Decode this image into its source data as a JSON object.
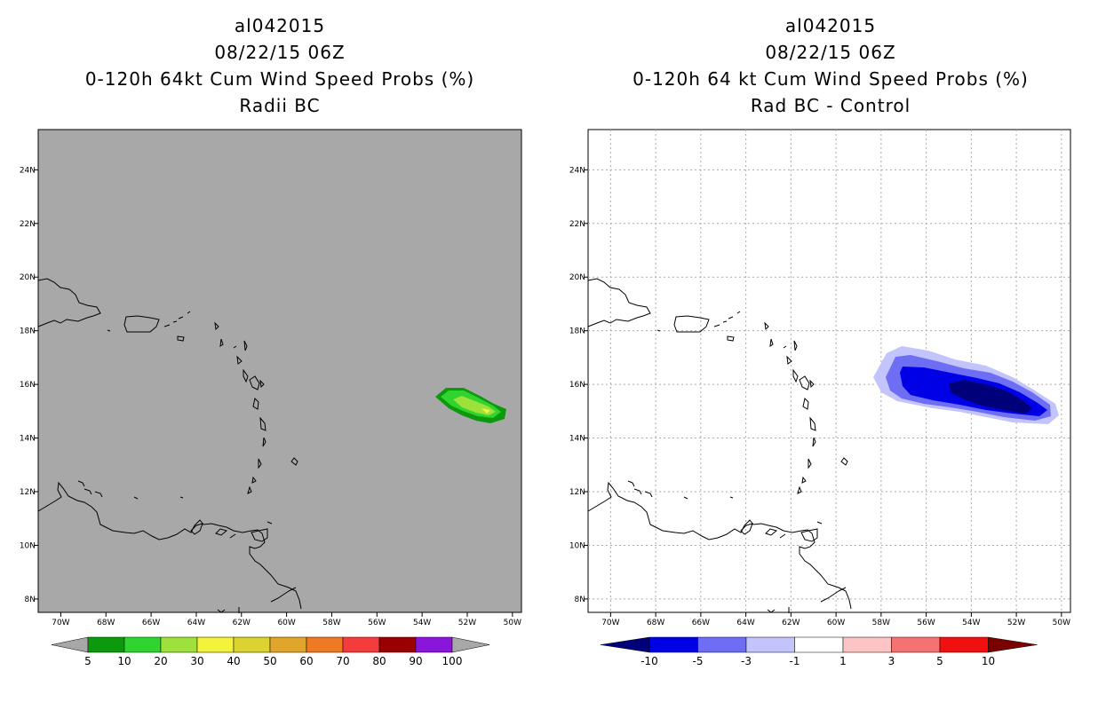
{
  "panels": [
    {
      "title_lines": [
        "al042015",
        "08/22/15 06Z",
        "0-120h 64kt Cum Wind Speed Probs (%)",
        "Radii BC"
      ],
      "lon_ticks": [
        "70W",
        "68W",
        "66W",
        "64W",
        "62W",
        "60W",
        "58W",
        "56W",
        "54W",
        "52W",
        "50W"
      ],
      "lat_ticks": [
        "8N",
        "10N",
        "12N",
        "14N",
        "16N",
        "18N",
        "20N",
        "22N",
        "24N"
      ],
      "background": "#a8a8a8",
      "colorbar": {
        "labels": [
          "5",
          "10",
          "20",
          "30",
          "40",
          "50",
          "60",
          "70",
          "80",
          "90",
          "100"
        ],
        "colors": [
          "#0c9a0c",
          "#2fd42f",
          "#9ee03c",
          "#f3f33c",
          "#dcd230",
          "#e0a52a",
          "#ee7a24",
          "#f43c3c",
          "#9a0000",
          "#8a16dc"
        ],
        "end_color": "#a8a8a8"
      }
    },
    {
      "title_lines": [
        "al042015",
        "08/22/15 06Z",
        "0-120h 64 kt Cum Wind Speed Probs (%)",
        "Rad BC - Control"
      ],
      "lon_ticks": [
        "70W",
        "68W",
        "66W",
        "64W",
        "62W",
        "60W",
        "58W",
        "56W",
        "54W",
        "52W",
        "50W"
      ],
      "lat_ticks": [
        "8N",
        "10N",
        "12N",
        "14N",
        "16N",
        "18N",
        "20N",
        "22N",
        "24N"
      ],
      "background": "#ffffff",
      "colorbar": {
        "labels": [
          "-10",
          "-5",
          "-3",
          "-1",
          "1",
          "3",
          "5",
          "10"
        ],
        "colors": [
          "#0000e6",
          "#6e6ef4",
          "#c4c4fc",
          "#ffffff",
          "#fcc4c4",
          "#f47272",
          "#f01010"
        ],
        "end_left": "#00007a",
        "end_right": "#7a0000"
      }
    }
  ]
}
